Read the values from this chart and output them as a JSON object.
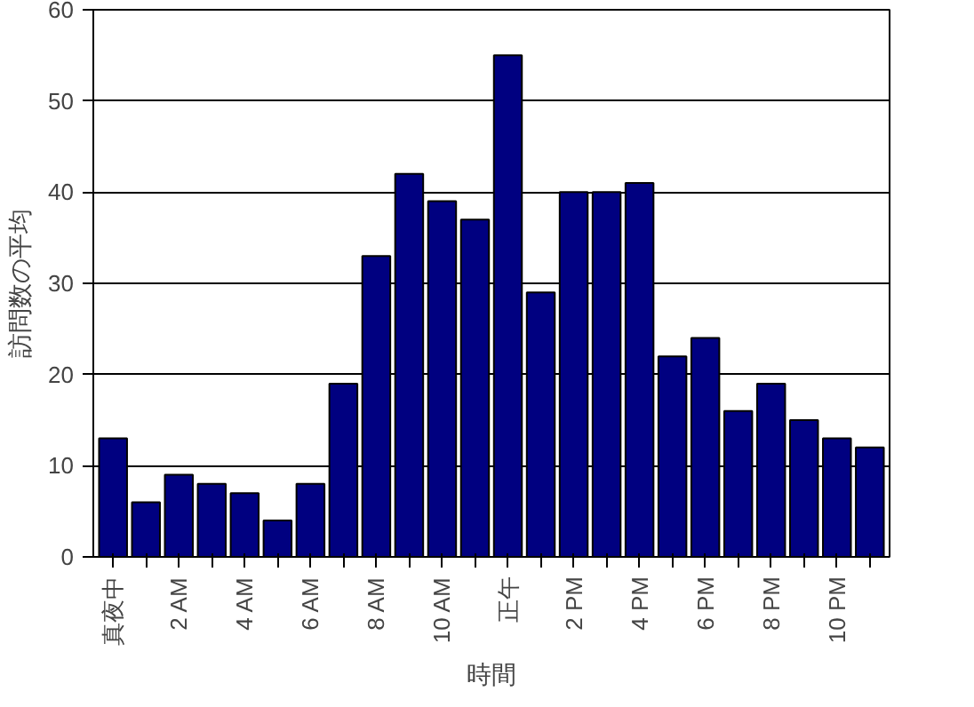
{
  "chart_data": {
    "type": "bar",
    "xlabel": "時間",
    "ylabel": "訪問数の平均",
    "categories": [
      "真夜中",
      null,
      "2 AM",
      null,
      "4 AM",
      null,
      "6 AM",
      null,
      "8 AM",
      null,
      "10 AM",
      null,
      "正午",
      null,
      "2 PM",
      null,
      "4 PM",
      null,
      "6 PM",
      null,
      "8 PM",
      null,
      "10 PM",
      null
    ],
    "values": [
      13,
      6,
      9,
      8,
      7,
      4,
      8,
      19,
      33,
      42,
      39,
      37,
      55,
      29,
      40,
      40,
      41,
      22,
      24,
      16,
      19,
      15,
      13,
      12
    ],
    "color": "#000080",
    "ylim": [
      0,
      60
    ],
    "yticks": [
      0,
      10,
      20,
      30,
      40,
      50,
      60
    ],
    "grid": "y"
  }
}
